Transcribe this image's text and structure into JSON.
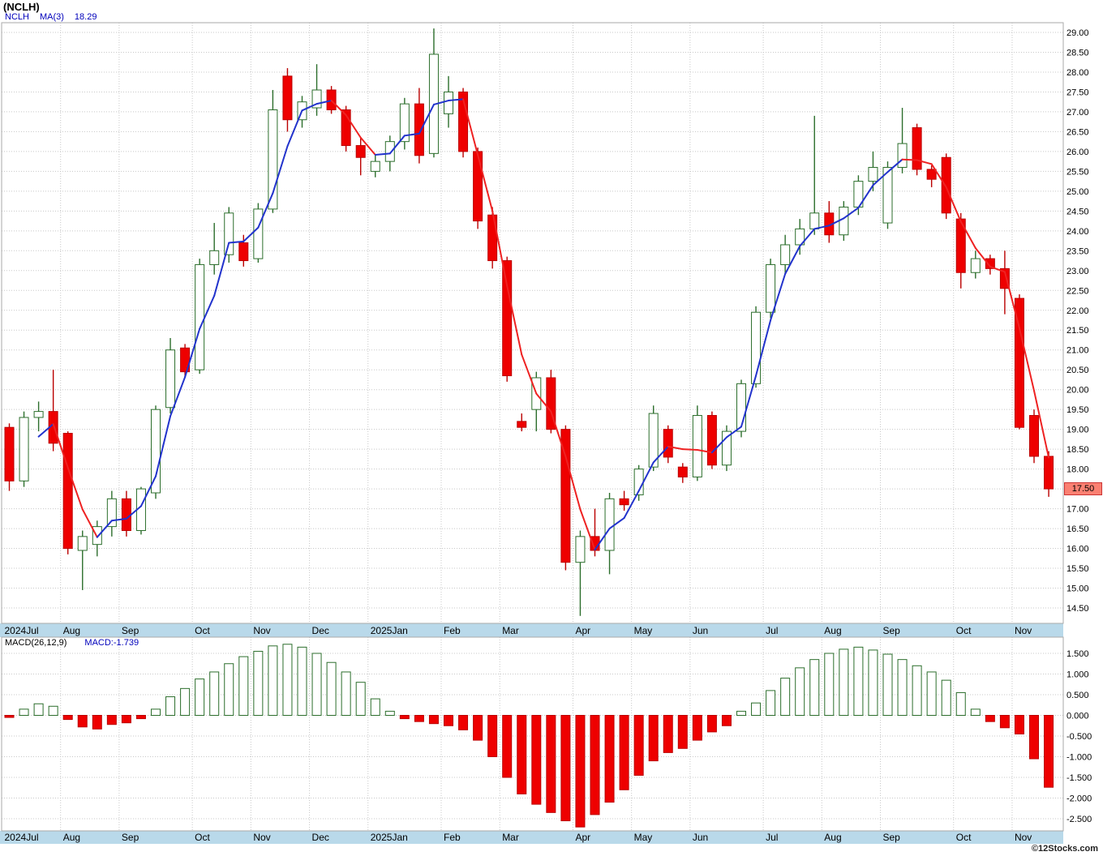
{
  "header": {
    "title": "(NCLH)",
    "legend": {
      "symbol": "NCLH",
      "ma_label": "MA(3)",
      "ma_value": "18.29"
    }
  },
  "macd_header": {
    "label": "MACD(26,12,9)",
    "value": "MACD:-1.739"
  },
  "price_tag": {
    "value": "17.50"
  },
  "footer": {
    "copyright": "©12Stocks.com"
  },
  "colors": {
    "up_outline": "#2c6e2c",
    "up_fill": "#ffffff",
    "down_fill": "#ee0000",
    "down_outline": "#bb0000",
    "ma_up": "#2233cc",
    "ma_down": "#ee2222",
    "band": "#b9d9ea",
    "grid": "#c8c8c8",
    "border": "#aaaaaa",
    "macd_pos_fill": "#ffffff",
    "macd_pos_outline": "#2c6e2c",
    "macd_neg_fill": "#ee0000",
    "macd_neg_outline": "#bb0000"
  },
  "chart_data": [
    {
      "type": "candlestick",
      "title": "(NCLH)",
      "ma_period": 3,
      "ma_last": 18.29,
      "last_price": 17.5,
      "y_axis": {
        "min": 14.5,
        "max": 29.0,
        "step": 0.5
      },
      "y_ticks": [
        "29.00",
        "28.50",
        "28.00",
        "27.50",
        "27.00",
        "26.50",
        "26.00",
        "25.50",
        "25.00",
        "24.50",
        "24.00",
        "23.50",
        "23.00",
        "22.50",
        "22.00",
        "21.50",
        "21.00",
        "20.50",
        "20.00",
        "19.50",
        "19.00",
        "18.50",
        "18.00",
        "17.50",
        "17.00",
        "16.50",
        "16.00",
        "15.50",
        "15.00",
        "14.50"
      ],
      "x_months": [
        {
          "label": "2024Jul",
          "start": 0
        },
        {
          "label": "Aug",
          "start": 4
        },
        {
          "label": "Sep",
          "start": 8
        },
        {
          "label": "Oct",
          "start": 13
        },
        {
          "label": "Nov",
          "start": 17
        },
        {
          "label": "Dec",
          "start": 21
        },
        {
          "label": "2025Jan",
          "start": 25
        },
        {
          "label": "Feb",
          "start": 30
        },
        {
          "label": "Mar",
          "start": 34
        },
        {
          "label": "Apr",
          "start": 39
        },
        {
          "label": "May",
          "start": 43
        },
        {
          "label": "Jun",
          "start": 47
        },
        {
          "label": "Jul",
          "start": 52
        },
        {
          "label": "Aug",
          "start": 56
        },
        {
          "label": "Sep",
          "start": 60
        },
        {
          "label": "Oct",
          "start": 65
        },
        {
          "label": "Nov",
          "start": 69
        }
      ],
      "candles_ohlc": [
        [
          19.05,
          19.15,
          17.45,
          17.7
        ],
        [
          17.7,
          19.45,
          17.55,
          19.3
        ],
        [
          19.3,
          19.7,
          18.95,
          19.45
        ],
        [
          19.45,
          20.5,
          18.45,
          18.65
        ],
        [
          18.9,
          18.95,
          15.85,
          16.0
        ],
        [
          15.95,
          16.45,
          14.95,
          16.3
        ],
        [
          16.1,
          16.7,
          15.8,
          16.55
        ],
        [
          16.55,
          17.45,
          16.3,
          17.25
        ],
        [
          17.25,
          17.45,
          16.3,
          16.45
        ],
        [
          16.45,
          17.55,
          16.35,
          17.5
        ],
        [
          17.4,
          19.6,
          17.25,
          19.5
        ],
        [
          19.55,
          21.3,
          19.4,
          21.0
        ],
        [
          21.05,
          21.15,
          20.3,
          20.45
        ],
        [
          20.5,
          23.3,
          20.4,
          23.15
        ],
        [
          23.15,
          24.2,
          22.9,
          23.5
        ],
        [
          23.4,
          24.6,
          23.2,
          24.45
        ],
        [
          23.7,
          23.9,
          23.1,
          23.25
        ],
        [
          23.3,
          24.7,
          23.2,
          24.55
        ],
        [
          24.55,
          27.55,
          24.45,
          27.05
        ],
        [
          27.9,
          28.1,
          26.5,
          26.8
        ],
        [
          26.8,
          27.4,
          26.6,
          27.25
        ],
        [
          27.1,
          28.2,
          26.9,
          27.55
        ],
        [
          27.55,
          27.65,
          26.95,
          27.05
        ],
        [
          27.05,
          27.15,
          26.0,
          26.15
        ],
        [
          26.15,
          26.35,
          25.4,
          25.85
        ],
        [
          25.5,
          25.9,
          25.35,
          25.75
        ],
        [
          25.75,
          26.4,
          25.5,
          26.25
        ],
        [
          26.25,
          27.35,
          26.05,
          27.2
        ],
        [
          27.2,
          27.6,
          25.7,
          25.9
        ],
        [
          25.95,
          29.1,
          25.85,
          28.45
        ],
        [
          26.95,
          27.9,
          26.6,
          27.5
        ],
        [
          27.5,
          27.6,
          25.85,
          26.0
        ],
        [
          26.0,
          26.1,
          24.05,
          24.25
        ],
        [
          24.4,
          24.6,
          23.05,
          23.25
        ],
        [
          23.25,
          23.35,
          20.2,
          20.35
        ],
        [
          19.2,
          19.4,
          18.95,
          19.05
        ],
        [
          19.5,
          20.45,
          18.95,
          20.3
        ],
        [
          20.3,
          20.5,
          18.9,
          19.0
        ],
        [
          19.0,
          19.1,
          15.45,
          15.65
        ],
        [
          15.65,
          16.45,
          14.3,
          16.3
        ],
        [
          16.3,
          17.0,
          15.8,
          15.95
        ],
        [
          15.95,
          17.4,
          15.35,
          17.25
        ],
        [
          17.25,
          17.45,
          16.95,
          17.1
        ],
        [
          17.35,
          18.1,
          17.2,
          18.0
        ],
        [
          18.05,
          19.6,
          17.95,
          19.4
        ],
        [
          19.0,
          19.1,
          18.15,
          18.3
        ],
        [
          18.05,
          18.15,
          17.65,
          17.8
        ],
        [
          17.8,
          19.6,
          17.7,
          19.35
        ],
        [
          19.35,
          19.45,
          18.0,
          18.1
        ],
        [
          18.1,
          19.1,
          17.95,
          18.95
        ],
        [
          18.95,
          20.25,
          18.8,
          20.15
        ],
        [
          20.15,
          22.1,
          20.05,
          21.95
        ],
        [
          21.95,
          23.3,
          21.8,
          23.15
        ],
        [
          23.15,
          23.9,
          22.9,
          23.65
        ],
        [
          23.65,
          24.3,
          23.4,
          24.05
        ],
        [
          24.05,
          26.9,
          23.9,
          24.45
        ],
        [
          24.45,
          24.75,
          23.7,
          23.9
        ],
        [
          23.9,
          24.75,
          23.75,
          24.6
        ],
        [
          24.6,
          25.4,
          24.4,
          25.25
        ],
        [
          25.25,
          26.0,
          25.0,
          25.6
        ],
        [
          24.2,
          25.75,
          24.05,
          25.6
        ],
        [
          25.6,
          27.1,
          25.45,
          26.2
        ],
        [
          26.6,
          26.7,
          25.4,
          25.55
        ],
        [
          25.55,
          25.65,
          25.1,
          25.3
        ],
        [
          25.85,
          25.95,
          24.3,
          24.45
        ],
        [
          24.3,
          24.45,
          22.55,
          22.95
        ],
        [
          22.95,
          23.5,
          22.8,
          23.3
        ],
        [
          23.3,
          23.4,
          22.9,
          23.05
        ],
        [
          23.05,
          23.5,
          21.9,
          22.55
        ],
        [
          22.3,
          22.4,
          19.0,
          19.05
        ],
        [
          19.35,
          19.5,
          18.15,
          18.32
        ],
        [
          18.32,
          18.45,
          17.3,
          17.5
        ]
      ]
    },
    {
      "type": "bar",
      "title": "MACD(26,12,9)",
      "last_value": -1.739,
      "y_axis": {
        "min": -2.5,
        "max": 1.5,
        "step": 0.5
      },
      "y_ticks": [
        "1.500",
        "1.000",
        "0.500",
        "0.000",
        "-0.500",
        "-1.000",
        "-1.500",
        "-2.000",
        "-2.500"
      ],
      "values": [
        -0.05,
        0.15,
        0.28,
        0.22,
        -0.1,
        -0.28,
        -0.33,
        -0.22,
        -0.18,
        -0.08,
        0.15,
        0.45,
        0.65,
        0.88,
        1.05,
        1.25,
        1.42,
        1.55,
        1.68,
        1.72,
        1.65,
        1.5,
        1.28,
        1.05,
        0.8,
        0.4,
        0.1,
        -0.08,
        -0.15,
        -0.2,
        -0.25,
        -0.35,
        -0.6,
        -1.0,
        -1.5,
        -1.9,
        -2.15,
        -2.35,
        -2.55,
        -2.7,
        -2.4,
        -2.1,
        -1.8,
        -1.45,
        -1.1,
        -0.9,
        -0.8,
        -0.6,
        -0.4,
        -0.25,
        0.1,
        0.3,
        0.6,
        0.9,
        1.15,
        1.35,
        1.5,
        1.6,
        1.65,
        1.58,
        1.48,
        1.35,
        1.2,
        1.05,
        0.85,
        0.55,
        0.15,
        -0.15,
        -0.3,
        -0.45,
        -1.05,
        -1.739
      ]
    }
  ]
}
